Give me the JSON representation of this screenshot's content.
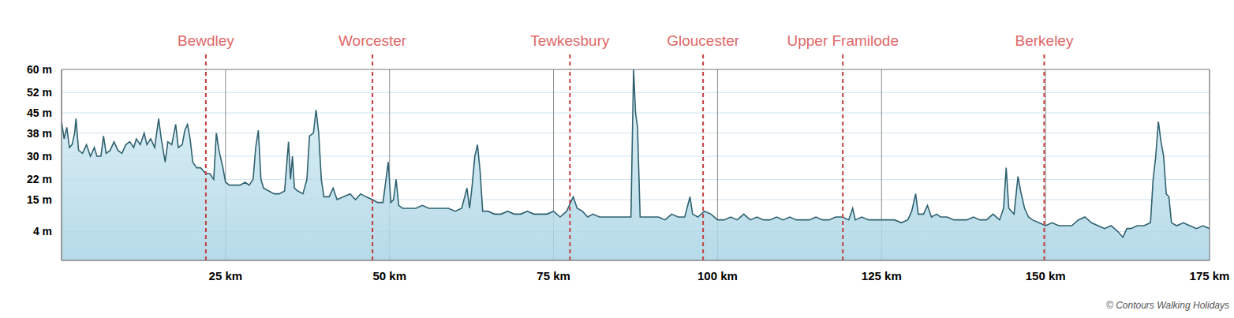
{
  "chart_data": {
    "type": "area",
    "color": "#2f6170",
    "grid": true,
    "xlim": [
      0,
      175
    ],
    "xticks": [
      {
        "value": 25,
        "label": "25 km"
      },
      {
        "value": 50,
        "label": "50 km"
      },
      {
        "value": 75,
        "label": "75 km"
      },
      {
        "value": 100,
        "label": "100 km"
      },
      {
        "value": 125,
        "label": "125 km"
      },
      {
        "value": 150,
        "label": "150 km"
      },
      {
        "value": 175,
        "label": "175 km"
      }
    ],
    "ylim": [
      -6,
      60
    ],
    "yticks": [
      {
        "value": 4,
        "label": "4 m"
      },
      {
        "value": 15,
        "label": "15 m"
      },
      {
        "value": 22,
        "label": "22 m"
      },
      {
        "value": 30,
        "label": "30 m"
      },
      {
        "value": 38,
        "label": "38 m"
      },
      {
        "value": 45,
        "label": "45 m"
      },
      {
        "value": 52,
        "label": "52 m"
      },
      {
        "value": 60,
        "label": "60 m"
      }
    ],
    "annotations": [
      {
        "text": "Bewdley",
        "x": 22.0
      },
      {
        "text": "Worcester",
        "x": 47.4
      },
      {
        "text": "Tewkesbury",
        "x": 77.5
      },
      {
        "text": "Gloucester",
        "x": 97.8
      },
      {
        "text": "Upper Framilode",
        "x": 119.1
      },
      {
        "text": "Berkeley",
        "x": 149.8
      }
    ],
    "credit": "© Contours Walking Holidays",
    "x": [
      0,
      0.4,
      0.8,
      1.2,
      1.6,
      2.0,
      2.2,
      2.6,
      3.2,
      3.8,
      4.4,
      5.0,
      5.4,
      6.0,
      6.4,
      6.8,
      7.4,
      8.0,
      8.6,
      9.2,
      9.8,
      10.4,
      11.0,
      11.4,
      12.0,
      12.6,
      13.0,
      13.6,
      14.2,
      14.8,
      15.2,
      15.8,
      16.2,
      16.8,
      17.4,
      17.8,
      18.4,
      18.8,
      19.2,
      19.6,
      20.0,
      20.6,
      21.2,
      22.0,
      22.6,
      23.2,
      23.6,
      24.0,
      24.6,
      25.0,
      25.6,
      26.4,
      27.2,
      28.0,
      28.6,
      29.2,
      29.6,
      30.0,
      30.4,
      30.8,
      31.6,
      32.4,
      33.2,
      34.0,
      34.6,
      34.9,
      35.2,
      35.5,
      36.0,
      36.8,
      37.4,
      37.8,
      38.4,
      38.8,
      39.2,
      39.6,
      40.0,
      40.8,
      41.4,
      42.0,
      43,
      44,
      44.8,
      45.6,
      46.4,
      47.4,
      48.2,
      49.0,
      49.8,
      50.2,
      50.6,
      51.0,
      51.4,
      52,
      53,
      54,
      55,
      56,
      57,
      58,
      59,
      60,
      61,
      61.8,
      62.2,
      62.6,
      63.0,
      63.4,
      63.8,
      64.2,
      65,
      66,
      67,
      68,
      69,
      70,
      71,
      72,
      73,
      74,
      75,
      76,
      77,
      78,
      78.6,
      79.4,
      80.2,
      81,
      82,
      83,
      84,
      85,
      86,
      86.8,
      87.2,
      87.5,
      87.8,
      88.2,
      89,
      90,
      91,
      92,
      93,
      94,
      95,
      95.8,
      96.2,
      97,
      98,
      99,
      100,
      101,
      102,
      103,
      104,
      105,
      106,
      107,
      108,
      109,
      110,
      111,
      112,
      113,
      114,
      115,
      116,
      117,
      118,
      119,
      120,
      120.6,
      121,
      122,
      123,
      124,
      125,
      126,
      127,
      128,
      129,
      129.6,
      130.2,
      130.6,
      131.4,
      132,
      132.6,
      133.4,
      134,
      135,
      136,
      137,
      138,
      139,
      140,
      141,
      142,
      143,
      143.6,
      144,
      144.4,
      145.2,
      145.8,
      146.2,
      146.8,
      147.4,
      148,
      149,
      150,
      151,
      152,
      153,
      154,
      155,
      156,
      157,
      158,
      159,
      160,
      161,
      161.8,
      162.4,
      163,
      164,
      165,
      166,
      166.4,
      166.8,
      167.2,
      167.6,
      168,
      168.4,
      168.8,
      169.2,
      170,
      171,
      172,
      173,
      174,
      175
    ],
    "values": [
      42,
      36,
      40,
      33,
      34,
      38,
      43,
      32,
      31,
      34,
      30,
      33,
      30,
      30,
      37,
      31,
      32,
      35,
      32,
      31,
      34,
      35,
      33,
      36,
      34,
      38,
      34,
      36,
      33,
      43,
      36,
      28,
      35,
      34,
      41,
      33,
      34,
      39,
      41,
      36,
      28,
      26,
      26,
      24,
      24,
      22,
      38,
      32,
      26,
      21,
      20,
      20,
      20,
      21,
      20,
      22,
      33,
      39,
      22,
      19,
      18,
      17,
      17,
      18,
      35,
      22,
      30,
      19,
      18,
      17,
      22,
      37,
      38,
      46,
      38,
      22,
      16,
      16,
      19,
      15,
      16,
      17,
      15,
      17,
      16,
      15,
      14,
      14,
      28,
      14,
      15,
      22,
      13,
      12,
      12,
      12,
      13,
      12,
      12,
      12,
      12,
      11,
      12,
      19,
      12,
      20,
      30,
      34,
      25,
      11,
      11,
      10,
      10,
      11,
      10,
      10,
      11,
      10,
      10,
      10,
      11,
      9,
      11,
      16,
      12,
      11,
      9,
      10,
      9,
      9,
      9,
      9,
      9,
      9,
      60,
      45,
      40,
      9,
      9,
      9,
      9,
      8,
      10,
      9,
      9,
      16,
      10,
      9,
      11,
      10,
      8,
      8,
      9,
      8,
      10,
      8,
      9,
      8,
      8,
      9,
      8,
      9,
      8,
      8,
      8,
      9,
      8,
      8,
      9,
      9,
      8,
      12,
      8,
      9,
      8,
      8,
      8,
      8,
      8,
      7,
      8,
      11,
      17,
      10,
      10,
      13,
      9,
      10,
      9,
      9,
      8,
      8,
      8,
      9,
      8,
      8,
      10,
      8,
      12,
      26,
      12,
      10,
      23,
      18,
      12,
      9,
      8,
      7,
      6,
      7,
      6,
      6,
      6,
      8,
      9,
      7,
      6,
      5,
      6,
      4,
      2,
      5,
      5,
      6,
      6,
      7,
      22,
      30,
      42,
      35,
      30,
      17,
      16,
      7,
      6,
      7,
      6,
      5,
      6,
      5
    ]
  }
}
